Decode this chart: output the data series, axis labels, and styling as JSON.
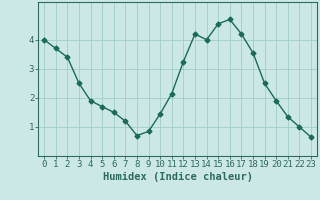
{
  "title": "",
  "xlabel": "Humidex (Indice chaleur)",
  "x": [
    0,
    1,
    2,
    3,
    4,
    5,
    6,
    7,
    8,
    9,
    10,
    11,
    12,
    13,
    14,
    15,
    16,
    17,
    18,
    19,
    20,
    21,
    22,
    23
  ],
  "y": [
    4.0,
    3.7,
    3.4,
    2.5,
    1.9,
    1.7,
    1.5,
    1.2,
    0.7,
    0.85,
    1.45,
    2.15,
    3.25,
    4.2,
    4.0,
    4.55,
    4.7,
    4.2,
    3.55,
    2.5,
    1.9,
    1.35,
    1.0,
    0.65
  ],
  "line_color": "#1a6b5a",
  "marker": "D",
  "marker_size": 2.5,
  "bg_color": "#cce8e6",
  "grid_color": "#a0cdc9",
  "axes_color": "#2d6b60",
  "tick_color": "#2d6b60",
  "ylim": [
    0.0,
    5.3
  ],
  "xlim": [
    -0.5,
    23.5
  ],
  "yticks": [
    1,
    2,
    3,
    4
  ],
  "xticks": [
    0,
    1,
    2,
    3,
    4,
    5,
    6,
    7,
    8,
    9,
    10,
    11,
    12,
    13,
    14,
    15,
    16,
    17,
    18,
    19,
    20,
    21,
    22,
    23
  ],
  "xlabel_fontsize": 7.5,
  "tick_fontsize": 6.5,
  "line_width": 1.0
}
